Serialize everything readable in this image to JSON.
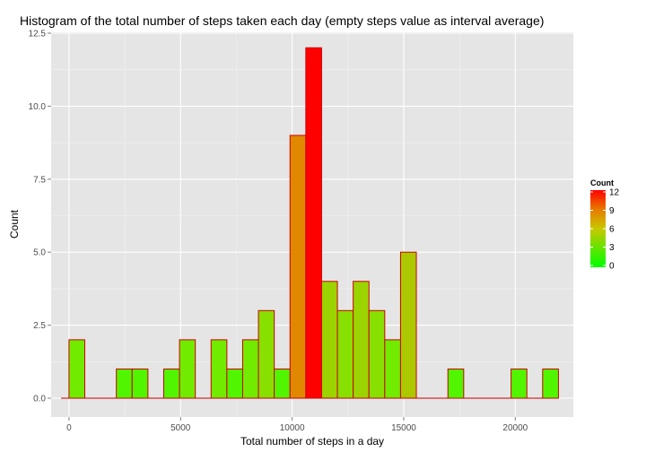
{
  "chart_data": {
    "type": "bar",
    "title": "Histogram of the total number of steps taken each day (empty steps value as interval average)",
    "xlabel": "Total number of steps in a day",
    "ylabel": "Count",
    "xlim": [
      -800,
      22600
    ],
    "ylim": [
      0,
      12.5
    ],
    "xticks": [
      0,
      5000,
      10000,
      15000,
      20000
    ],
    "xtick_labels": [
      "0",
      "5000",
      "10000",
      "15000",
      "20000"
    ],
    "yticks": [
      0,
      2.5,
      5,
      7.5,
      10,
      12.5
    ],
    "ytick_labels": [
      "0.0",
      "2.5",
      "5.0",
      "7.5",
      "10.0",
      "12.5"
    ],
    "grid": true,
    "bin_width": 707.5,
    "bins": [
      {
        "x": 0,
        "count": 0
      },
      {
        "x": 354,
        "count": 2
      },
      {
        "x": 1061,
        "count": 0
      },
      {
        "x": 1769,
        "count": 0
      },
      {
        "x": 2476,
        "count": 1
      },
      {
        "x": 3184,
        "count": 1
      },
      {
        "x": 3891,
        "count": 0
      },
      {
        "x": 4599,
        "count": 1
      },
      {
        "x": 5306,
        "count": 2
      },
      {
        "x": 6014,
        "count": 0
      },
      {
        "x": 6721,
        "count": 2
      },
      {
        "x": 7429,
        "count": 1
      },
      {
        "x": 8136,
        "count": 2
      },
      {
        "x": 8844,
        "count": 3
      },
      {
        "x": 9551,
        "count": 1
      },
      {
        "x": 10259,
        "count": 9
      },
      {
        "x": 10966,
        "count": 12
      },
      {
        "x": 11674,
        "count": 4
      },
      {
        "x": 12381,
        "count": 3
      },
      {
        "x": 13089,
        "count": 4
      },
      {
        "x": 13796,
        "count": 3
      },
      {
        "x": 14504,
        "count": 2
      },
      {
        "x": 15211,
        "count": 5
      },
      {
        "x": 15919,
        "count": 0
      },
      {
        "x": 16626,
        "count": 0
      },
      {
        "x": 17334,
        "count": 1
      },
      {
        "x": 18041,
        "count": 0
      },
      {
        "x": 18749,
        "count": 0
      },
      {
        "x": 19456,
        "count": 0
      },
      {
        "x": 20164,
        "count": 1
      },
      {
        "x": 20871,
        "count": 0
      },
      {
        "x": 21579,
        "count": 1
      }
    ],
    "bar_outline_color": "#cc0000",
    "color_scale": {
      "low": "#00ff00",
      "high": "#ff0000",
      "min": 0,
      "max": 12
    },
    "legend": {
      "title": "Count",
      "position": "right",
      "breaks": [
        0,
        3,
        6,
        9,
        12
      ],
      "labels": [
        "0",
        "3",
        "6",
        "9",
        "12"
      ]
    },
    "panel_background": "#e5e5e5",
    "grid_color": "#ffffff"
  }
}
